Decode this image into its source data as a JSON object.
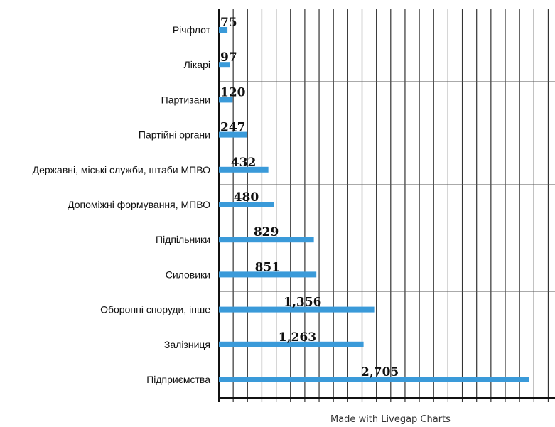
{
  "chart_data": {
    "type": "bar",
    "orientation": "horizontal",
    "categories": [
      "Річфлот",
      "Лікарі",
      "Партизани",
      "Партійні органи",
      "Державні, міські служби, штаби МПВО",
      "Допоміжні формування, МПВО",
      "Підпільники",
      "Силовики",
      "Оборонні споруди, інше",
      "Залізниця",
      "Підприємства"
    ],
    "values": [
      75,
      97,
      120,
      247,
      432,
      480,
      829,
      851,
      1356,
      1263,
      2705
    ],
    "value_labels": [
      "75",
      "97",
      "120",
      "247",
      "432",
      "480",
      "829",
      "851",
      "1,356",
      "1,263",
      "2,705"
    ],
    "bar_color": "#3a9ad9",
    "grid": true,
    "grid_color": "#333333",
    "xlim": [
      0,
      2900
    ],
    "x_tick_step": 125
  },
  "footer": {
    "text": "Made with Livegap Charts"
  }
}
